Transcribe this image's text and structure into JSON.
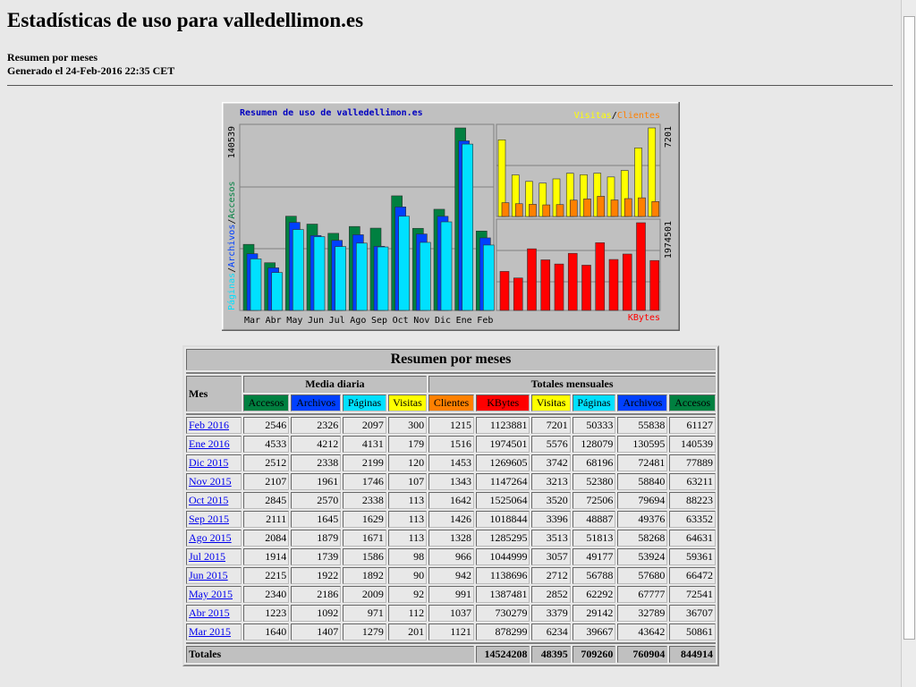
{
  "header": {
    "title": "Estadísticas de uso para valledellimon.es",
    "lines": [
      "Resumen por meses",
      "Generado el 24-Feb-2016 22:35 CET"
    ]
  },
  "graph": {
    "title": "Resumen de uso de valledellimon.es",
    "legend_right": [
      "Visitas",
      "/",
      "Clientes"
    ],
    "legend_left": [
      "Páginas",
      "/",
      "Archivos",
      "/",
      "Accesos"
    ],
    "legend_bottom": "KBytes",
    "months": [
      "Mar",
      "Abr",
      "May",
      "Jun",
      "Jul",
      "Ago",
      "Sep",
      "Oct",
      "Nov",
      "Dic",
      "Ene",
      "Feb"
    ]
  },
  "table": {
    "title": "Resumen por meses",
    "mes": "Mes",
    "group_daily": "Media diaria",
    "group_totals": "Totales mensuales",
    "daily_cols": [
      "Accesos",
      "Archivos",
      "Páginas",
      "Visitas"
    ],
    "daily_colors": [
      "#008040",
      "#0040ff",
      "#00e0ff",
      "#ffff00"
    ],
    "total_cols": [
      "Clientes",
      "KBytes",
      "Visitas",
      "Páginas",
      "Archivos",
      "Accesos"
    ],
    "total_colors": [
      "#ff8000",
      "#ff0000",
      "#ffff00",
      "#00e0ff",
      "#0040ff",
      "#008040"
    ],
    "rows": [
      {
        "month": "Feb 2016",
        "values": [
          2546,
          2326,
          2097,
          300,
          1215,
          1123881,
          7201,
          50333,
          55838,
          61127
        ]
      },
      {
        "month": "Ene 2016",
        "values": [
          4533,
          4212,
          4131,
          179,
          1516,
          1974501,
          5576,
          128079,
          130595,
          140539
        ]
      },
      {
        "month": "Dic 2015",
        "values": [
          2512,
          2338,
          2199,
          120,
          1453,
          1269605,
          3742,
          68196,
          72481,
          77889
        ]
      },
      {
        "month": "Nov 2015",
        "values": [
          2107,
          1961,
          1746,
          107,
          1343,
          1147264,
          3213,
          52380,
          58840,
          63211
        ]
      },
      {
        "month": "Oct 2015",
        "values": [
          2845,
          2570,
          2338,
          113,
          1642,
          1525064,
          3520,
          72506,
          79694,
          88223
        ]
      },
      {
        "month": "Sep 2015",
        "values": [
          2111,
          1645,
          1629,
          113,
          1426,
          1018844,
          3396,
          48887,
          49376,
          63352
        ]
      },
      {
        "month": "Ago 2015",
        "values": [
          2084,
          1879,
          1671,
          113,
          1328,
          1285295,
          3513,
          51813,
          58268,
          64631
        ]
      },
      {
        "month": "Jul 2015",
        "values": [
          1914,
          1739,
          1586,
          98,
          966,
          1044999,
          3057,
          49177,
          53924,
          59361
        ]
      },
      {
        "month": "Jun 2015",
        "values": [
          2215,
          1922,
          1892,
          90,
          942,
          1138696,
          2712,
          56788,
          57680,
          66472
        ]
      },
      {
        "month": "May 2015",
        "values": [
          2340,
          2186,
          2009,
          92,
          991,
          1387481,
          2852,
          62292,
          67777,
          72541
        ]
      },
      {
        "month": "Abr 2015",
        "values": [
          1223,
          1092,
          971,
          112,
          1037,
          730279,
          3379,
          29142,
          32789,
          36707
        ]
      },
      {
        "month": "Mar 2015",
        "values": [
          1640,
          1407,
          1279,
          201,
          1121,
          878299,
          6234,
          39667,
          43642,
          50861
        ]
      }
    ],
    "totals_label": "Totales",
    "totals": [
      14524208,
      48395,
      709260,
      760904,
      844914
    ]
  }
}
